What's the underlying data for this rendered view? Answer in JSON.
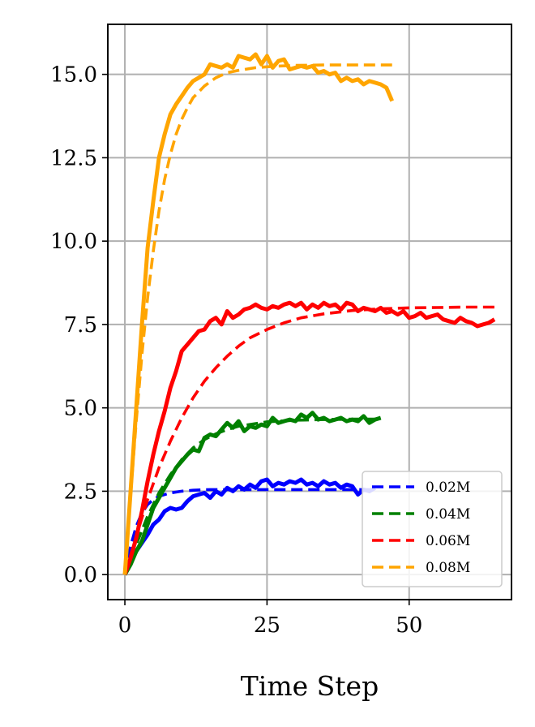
{
  "chart_data": {
    "type": "line",
    "title": "",
    "xlabel": "Time Step",
    "ylabel": "",
    "xlim": [
      -3,
      68
    ],
    "ylim": [
      -0.75,
      16.5
    ],
    "xticks": [
      0,
      25,
      50
    ],
    "xtick_labels": [
      "0",
      "25",
      "50"
    ],
    "yticks": [
      0,
      2.5,
      5,
      7.5,
      10,
      12.5,
      15
    ],
    "ytick_labels": [
      "0.0",
      "2.5",
      "5.0",
      "7.5",
      "10.0",
      "12.5",
      "15.0"
    ],
    "grid": true,
    "legend": {
      "placement": "lower-right",
      "entries": [
        "0.02M",
        "0.04M",
        "0.06M",
        "0.08M"
      ]
    },
    "series": [
      {
        "name": "0.02M",
        "color": "#0000ff",
        "observed": {
          "x": [
            0,
            1,
            2,
            3,
            4,
            5,
            6,
            7,
            8,
            9,
            10,
            11,
            12,
            13,
            14,
            15,
            16,
            17,
            18,
            19,
            20,
            21,
            22,
            23,
            24,
            25,
            26,
            27,
            28,
            29,
            30,
            31,
            32,
            33,
            34,
            35,
            36,
            37,
            38,
            39,
            40,
            41,
            42,
            43,
            44
          ],
          "y": [
            0.0,
            0.4,
            0.7,
            0.95,
            1.2,
            1.5,
            1.65,
            1.9,
            2.0,
            1.95,
            2.0,
            2.2,
            2.35,
            2.4,
            2.45,
            2.3,
            2.5,
            2.4,
            2.6,
            2.5,
            2.65,
            2.55,
            2.7,
            2.6,
            2.8,
            2.85,
            2.65,
            2.75,
            2.7,
            2.8,
            2.75,
            2.85,
            2.7,
            2.75,
            2.65,
            2.8,
            2.7,
            2.75,
            2.6,
            2.7,
            2.65,
            2.4,
            2.55,
            2.5,
            2.6
          ]
        },
        "fit": {
          "x": [
            0,
            1,
            2,
            3,
            4,
            5,
            6,
            8,
            10,
            12,
            15,
            20,
            25,
            30,
            35,
            40,
            44
          ],
          "y": [
            0.0,
            0.85,
            1.45,
            1.85,
            2.1,
            2.25,
            2.35,
            2.45,
            2.5,
            2.53,
            2.55,
            2.55,
            2.55,
            2.55,
            2.55,
            2.55,
            2.55
          ]
        }
      },
      {
        "name": "0.04M",
        "color": "#008000",
        "observed": {
          "x": [
            0,
            1,
            2,
            3,
            4,
            5,
            6,
            7,
            8,
            9,
            10,
            11,
            12,
            13,
            14,
            15,
            16,
            17,
            18,
            19,
            20,
            21,
            22,
            23,
            24,
            25,
            26,
            27,
            28,
            29,
            30,
            31,
            32,
            33,
            34,
            35,
            36,
            37,
            38,
            39,
            40,
            41,
            42,
            43,
            44,
            45
          ],
          "y": [
            0.0,
            0.3,
            0.7,
            1.0,
            1.5,
            2.0,
            2.3,
            2.6,
            2.9,
            3.2,
            3.4,
            3.6,
            3.75,
            3.7,
            4.1,
            4.2,
            4.15,
            4.35,
            4.55,
            4.4,
            4.6,
            4.3,
            4.45,
            4.4,
            4.5,
            4.45,
            4.7,
            4.55,
            4.6,
            4.65,
            4.6,
            4.8,
            4.7,
            4.85,
            4.65,
            4.7,
            4.6,
            4.65,
            4.7,
            4.6,
            4.65,
            4.6,
            4.75,
            4.55,
            4.65,
            4.7
          ]
        },
        "fit": {
          "x": [
            0,
            2,
            4,
            6,
            8,
            10,
            12,
            14,
            16,
            18,
            20,
            25,
            30,
            35,
            40,
            45
          ],
          "y": [
            0.0,
            0.9,
            1.75,
            2.45,
            3.0,
            3.45,
            3.8,
            4.05,
            4.22,
            4.35,
            4.45,
            4.58,
            4.63,
            4.65,
            4.66,
            4.66
          ]
        }
      },
      {
        "name": "0.06M",
        "color": "#ff0000",
        "observed": {
          "x": [
            0,
            1,
            2,
            3,
            4,
            5,
            6,
            7,
            8,
            9,
            10,
            11,
            12,
            13,
            14,
            15,
            16,
            17,
            18,
            19,
            20,
            21,
            22,
            23,
            24,
            25,
            26,
            27,
            28,
            29,
            30,
            31,
            32,
            33,
            34,
            35,
            36,
            37,
            38,
            39,
            40,
            41,
            42,
            43,
            44,
            45,
            46,
            47,
            48,
            49,
            50,
            51,
            52,
            53,
            54,
            55,
            56,
            57,
            58,
            59,
            60,
            61,
            62,
            63,
            64,
            65
          ],
          "y": [
            0.0,
            0.5,
            1.1,
            1.9,
            2.8,
            3.6,
            4.3,
            4.9,
            5.6,
            6.1,
            6.7,
            6.9,
            7.1,
            7.3,
            7.35,
            7.6,
            7.7,
            7.5,
            7.9,
            7.7,
            7.8,
            7.95,
            8.0,
            8.1,
            8.0,
            7.95,
            8.05,
            8.0,
            8.1,
            8.15,
            8.05,
            8.15,
            7.95,
            8.1,
            8.0,
            8.15,
            8.05,
            8.1,
            7.95,
            8.15,
            8.1,
            7.9,
            8.0,
            7.95,
            7.9,
            8.0,
            7.85,
            7.9,
            7.8,
            7.9,
            7.7,
            7.75,
            7.85,
            7.7,
            7.75,
            7.8,
            7.65,
            7.6,
            7.55,
            7.7,
            7.6,
            7.55,
            7.45,
            7.5,
            7.55,
            7.65
          ]
        },
        "fit": {
          "x": [
            0,
            2,
            4,
            6,
            8,
            10,
            12,
            14,
            16,
            18,
            20,
            22,
            25,
            28,
            31,
            35,
            40,
            45,
            50,
            55,
            60,
            65
          ],
          "y": [
            0.0,
            1.15,
            2.25,
            3.2,
            4.0,
            4.7,
            5.3,
            5.8,
            6.2,
            6.55,
            6.85,
            7.1,
            7.35,
            7.55,
            7.7,
            7.82,
            7.92,
            7.97,
            8.0,
            8.01,
            8.02,
            8.02
          ]
        }
      },
      {
        "name": "0.08M",
        "color": "#ffa500",
        "observed": {
          "x": [
            0,
            1,
            2,
            3,
            4,
            5,
            6,
            7,
            8,
            9,
            10,
            11,
            12,
            13,
            14,
            15,
            16,
            17,
            18,
            19,
            20,
            21,
            22,
            23,
            24,
            25,
            26,
            27,
            28,
            29,
            30,
            31,
            32,
            33,
            34,
            35,
            36,
            37,
            38,
            39,
            40,
            41,
            42,
            43,
            44,
            45,
            46,
            47
          ],
          "y": [
            0.0,
            2.5,
            5.0,
            7.5,
            9.8,
            11.2,
            12.5,
            13.2,
            13.8,
            14.1,
            14.35,
            14.6,
            14.8,
            14.9,
            15.0,
            15.3,
            15.25,
            15.2,
            15.3,
            15.2,
            15.55,
            15.5,
            15.45,
            15.6,
            15.3,
            15.55,
            15.2,
            15.4,
            15.45,
            15.15,
            15.2,
            15.25,
            15.2,
            15.25,
            15.05,
            15.1,
            15.0,
            15.05,
            14.8,
            14.9,
            14.8,
            14.85,
            14.7,
            14.8,
            14.75,
            14.7,
            14.6,
            14.2
          ]
        },
        "fit": {
          "x": [
            0,
            1,
            2,
            3,
            4,
            5,
            6,
            7,
            8,
            9,
            10,
            11,
            12,
            14,
            16,
            18,
            20,
            23,
            26,
            30,
            35,
            40,
            47
          ],
          "y": [
            0.0,
            2.4,
            4.6,
            6.6,
            8.3,
            9.7,
            10.9,
            11.85,
            12.6,
            13.2,
            13.65,
            14.0,
            14.3,
            14.65,
            14.9,
            15.05,
            15.12,
            15.2,
            15.24,
            15.27,
            15.28,
            15.28,
            15.28
          ]
        }
      }
    ]
  }
}
